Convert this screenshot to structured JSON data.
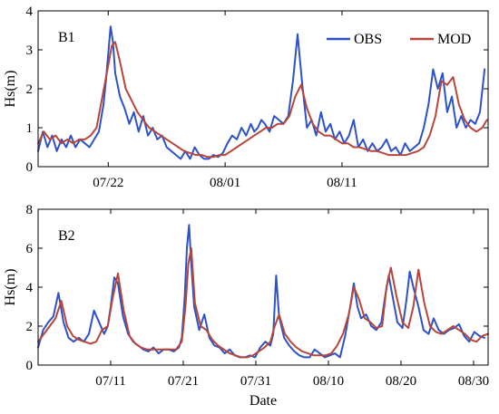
{
  "colors": {
    "obs": "#2d52c8",
    "mod": "#b8453a"
  },
  "chart_data": [
    {
      "type": "line",
      "panel_label": "B1",
      "ylabel": "Hs(m)",
      "xlabel": "",
      "ylim": [
        0,
        4
      ],
      "yticks": [
        "0",
        "1",
        "2",
        "3",
        "4"
      ],
      "xlim": [
        0,
        38.5
      ],
      "xticks": [
        {
          "label": "07/22",
          "x": 6
        },
        {
          "label": "08/01",
          "x": 16
        },
        {
          "label": "08/11",
          "x": 26
        }
      ],
      "legend": {
        "position": "top-right",
        "entries": [
          "OBS",
          "MOD"
        ]
      },
      "series": [
        {
          "name": "OBS",
          "color": "#2d52c8",
          "x": [
            0,
            0.4,
            0.8,
            1.2,
            1.6,
            2,
            2.4,
            2.8,
            3.2,
            3.6,
            4,
            4.4,
            4.8,
            5.2,
            5.6,
            5.8,
            6,
            6.2,
            6.4,
            6.6,
            6.8,
            7,
            7.4,
            7.8,
            8.2,
            8.6,
            9,
            9.4,
            9.8,
            10.2,
            10.6,
            11,
            11.4,
            11.8,
            12.2,
            12.6,
            13,
            13.4,
            13.8,
            14.2,
            14.6,
            15,
            15.4,
            15.8,
            16.2,
            16.6,
            17,
            17.4,
            17.8,
            18.2,
            18.5,
            18.8,
            19.1,
            19.4,
            19.8,
            20.2,
            20.6,
            21,
            21.4,
            21.8,
            22.2,
            22.6,
            23,
            23.4,
            23.8,
            24.2,
            24.6,
            25,
            25.4,
            25.8,
            26.2,
            26.6,
            27,
            27.4,
            27.8,
            28.2,
            28.6,
            29,
            29.4,
            29.8,
            30.2,
            30.6,
            31,
            31.4,
            31.8,
            32.2,
            32.6,
            33,
            33.4,
            33.8,
            34.2,
            34.6,
            35,
            35.4,
            35.8,
            36.2,
            36.6,
            37,
            37.4,
            37.8,
            38.2
          ],
          "y": [
            0.4,
            0.9,
            0.5,
            0.8,
            0.4,
            0.7,
            0.5,
            0.8,
            0.5,
            0.7,
            0.6,
            0.5,
            0.7,
            0.9,
            1.6,
            2.2,
            2.9,
            3.6,
            3.2,
            2.4,
            2.1,
            1.8,
            1.5,
            1.1,
            1.4,
            0.9,
            1.3,
            0.8,
            1.0,
            0.7,
            0.8,
            0.5,
            0.4,
            0.3,
            0.2,
            0.4,
            0.2,
            0.5,
            0.3,
            0.2,
            0.2,
            0.3,
            0.25,
            0.35,
            0.6,
            0.8,
            0.7,
            1.0,
            0.8,
            1.1,
            0.9,
            1.0,
            1.2,
            1.1,
            0.9,
            1.3,
            1.2,
            1.1,
            1.3,
            2.2,
            3.4,
            2.1,
            1.0,
            1.2,
            0.8,
            1.4,
            0.9,
            1.1,
            0.7,
            0.9,
            0.6,
            0.8,
            1.2,
            0.5,
            0.7,
            0.4,
            0.6,
            0.4,
            0.5,
            0.7,
            0.4,
            0.5,
            0.3,
            0.6,
            0.4,
            0.5,
            0.6,
            1.0,
            1.6,
            2.5,
            2.0,
            2.4,
            1.4,
            1.8,
            1.0,
            1.3,
            1.0,
            1.2,
            1.1,
            1.4,
            2.5
          ]
        },
        {
          "name": "MOD",
          "color": "#b8453a",
          "x": [
            0,
            0.5,
            1,
            1.5,
            2,
            2.5,
            3,
            3.5,
            4,
            4.5,
            5,
            5.5,
            6,
            6.3,
            6.6,
            7,
            7.5,
            8,
            8.5,
            9,
            9.5,
            10,
            10.5,
            11,
            11.5,
            12,
            12.5,
            13,
            13.5,
            14,
            14.5,
            15,
            15.5,
            16,
            16.5,
            17,
            17.5,
            18,
            18.5,
            19,
            19.5,
            20,
            20.5,
            21,
            21.5,
            22,
            22.5,
            23,
            23.5,
            24,
            24.5,
            25,
            25.5,
            26,
            26.5,
            27,
            27.5,
            28,
            28.5,
            29,
            29.5,
            30,
            30.5,
            31,
            31.5,
            32,
            32.5,
            33,
            33.5,
            34,
            34.5,
            35,
            35.5,
            36,
            36.5,
            37,
            37.5,
            38,
            38.4
          ],
          "y": [
            0.6,
            0.9,
            0.7,
            0.8,
            0.6,
            0.7,
            0.6,
            0.7,
            0.7,
            0.8,
            1.0,
            1.8,
            2.6,
            3.1,
            3.2,
            2.7,
            2.0,
            1.7,
            1.4,
            1.2,
            1.0,
            0.9,
            0.8,
            0.7,
            0.6,
            0.5,
            0.4,
            0.35,
            0.3,
            0.3,
            0.25,
            0.25,
            0.3,
            0.3,
            0.4,
            0.5,
            0.6,
            0.7,
            0.8,
            0.9,
            1.0,
            1.0,
            1.1,
            1.1,
            1.3,
            1.8,
            2.1,
            1.5,
            1.1,
            0.9,
            0.8,
            0.8,
            0.7,
            0.6,
            0.6,
            0.5,
            0.5,
            0.45,
            0.4,
            0.4,
            0.35,
            0.3,
            0.3,
            0.3,
            0.3,
            0.35,
            0.4,
            0.5,
            0.8,
            1.3,
            2.2,
            2.1,
            2.3,
            1.6,
            1.2,
            1.0,
            0.9,
            1.0,
            1.2
          ]
        }
      ]
    },
    {
      "type": "line",
      "panel_label": "B2",
      "ylabel": "Hs(m)",
      "xlabel": "Date",
      "ylim": [
        0,
        8
      ],
      "yticks": [
        "0",
        "2",
        "4",
        "6",
        "8"
      ],
      "xlim": [
        0,
        62
      ],
      "xticks": [
        {
          "label": "07/11",
          "x": 10
        },
        {
          "label": "07/21",
          "x": 20
        },
        {
          "label": "07/31",
          "x": 30
        },
        {
          "label": "08/10",
          "x": 40
        },
        {
          "label": "08/20",
          "x": 50
        },
        {
          "label": "08/30",
          "x": 60
        }
      ],
      "series": [
        {
          "name": "OBS",
          "color": "#2d52c8",
          "x": [
            0,
            0.7,
            1.4,
            2.1,
            2.8,
            3.5,
            4.2,
            4.9,
            5.6,
            6.3,
            7,
            7.7,
            8.4,
            9.1,
            9.6,
            10,
            10.5,
            11,
            11.7,
            12.4,
            13.1,
            13.8,
            14.5,
            15.2,
            15.9,
            16.6,
            17.3,
            18,
            18.7,
            19.4,
            19.8,
            20.2,
            20.5,
            20.8,
            21.1,
            21.5,
            22.2,
            22.9,
            23.6,
            24.3,
            25,
            25.7,
            26.4,
            27.1,
            27.8,
            28.5,
            29.2,
            29.9,
            30.6,
            31.3,
            32,
            32.4,
            32.8,
            33.2,
            33.9,
            34.6,
            35.3,
            36,
            36.7,
            37.4,
            38.1,
            38.8,
            39.5,
            40.2,
            40.9,
            41.6,
            42.3,
            43,
            43.5,
            44,
            44.5,
            45.2,
            45.9,
            46.6,
            47.3,
            47.8,
            48.3,
            48.8,
            49.5,
            50.2,
            50.7,
            51.2,
            51.7,
            52.4,
            53.1,
            53.8,
            54.5,
            55.2,
            55.9,
            56.6,
            57.3,
            58,
            58.7,
            59.4,
            60.1,
            60.8,
            61.5
          ],
          "y": [
            0.9,
            1.8,
            2.2,
            2.5,
            3.7,
            2.2,
            1.4,
            1.2,
            1.4,
            1.2,
            1.6,
            2.8,
            2.2,
            1.6,
            2.0,
            3.0,
            4.5,
            4.2,
            2.5,
            1.6,
            1.2,
            1.0,
            0.8,
            0.7,
            0.9,
            0.6,
            0.8,
            0.8,
            0.7,
            0.9,
            1.4,
            3.5,
            6.0,
            7.2,
            5.2,
            3.0,
            1.8,
            2.6,
            1.4,
            1.0,
            0.9,
            0.6,
            0.8,
            0.5,
            0.4,
            0.4,
            0.5,
            0.4,
            0.9,
            1.2,
            1.0,
            1.6,
            4.6,
            2.5,
            1.4,
            1.0,
            0.7,
            0.5,
            0.4,
            0.4,
            0.8,
            0.6,
            0.4,
            0.5,
            0.6,
            0.4,
            1.5,
            3.0,
            4.2,
            3.0,
            2.4,
            2.6,
            2.0,
            1.8,
            2.2,
            3.5,
            4.6,
            3.6,
            2.2,
            1.9,
            3.2,
            4.8,
            4.0,
            3.0,
            1.8,
            1.6,
            2.4,
            1.8,
            1.6,
            1.8,
            1.9,
            2.1,
            1.5,
            1.2,
            1.7,
            1.5,
            1.4
          ]
        },
        {
          "name": "MOD",
          "color": "#b8453a",
          "x": [
            0,
            0.8,
            1.6,
            2.4,
            3.2,
            4,
            4.8,
            5.6,
            6.4,
            7.2,
            8,
            8.8,
            9.6,
            10.3,
            11,
            11.8,
            12.6,
            13.4,
            14.2,
            15,
            15.8,
            16.6,
            17.4,
            18.2,
            19,
            19.8,
            20.3,
            20.7,
            21.1,
            21.6,
            22.4,
            23.2,
            24,
            24.8,
            25.6,
            26.4,
            27.2,
            28,
            28.8,
            29.6,
            30.4,
            31.2,
            32,
            32.6,
            33.2,
            34,
            34.8,
            35.6,
            36.4,
            37.2,
            38,
            38.8,
            39.6,
            40.4,
            41.2,
            42,
            42.8,
            43.5,
            44.2,
            45,
            45.8,
            46.6,
            47.4,
            48,
            48.6,
            49.4,
            50.2,
            51,
            51.7,
            52.4,
            53.2,
            54,
            54.8,
            55.6,
            56.4,
            57.2,
            58,
            58.8,
            59.6,
            60.4,
            61.2,
            62
          ],
          "y": [
            1.2,
            1.6,
            2.0,
            2.4,
            3.3,
            2.0,
            1.5,
            1.3,
            1.2,
            1.1,
            1.2,
            1.8,
            2.0,
            3.5,
            4.7,
            2.8,
            1.5,
            1.1,
            0.9,
            0.8,
            0.8,
            0.8,
            0.8,
            0.8,
            0.8,
            1.2,
            3.0,
            5.2,
            6.0,
            3.2,
            2.0,
            1.8,
            1.3,
            1.0,
            0.8,
            0.6,
            0.5,
            0.4,
            0.4,
            0.5,
            0.7,
            0.9,
            1.2,
            2.0,
            2.6,
            1.6,
            1.2,
            0.9,
            0.7,
            0.6,
            0.5,
            0.5,
            0.5,
            0.6,
            1.0,
            1.6,
            2.6,
            4.0,
            3.4,
            2.4,
            2.2,
            1.9,
            2.0,
            4.0,
            5.0,
            3.5,
            2.2,
            1.9,
            3.0,
            4.9,
            3.2,
            2.0,
            1.7,
            1.6,
            1.8,
            2.0,
            1.8,
            1.6,
            1.3,
            1.2,
            1.5,
            1.6
          ]
        }
      ]
    }
  ]
}
